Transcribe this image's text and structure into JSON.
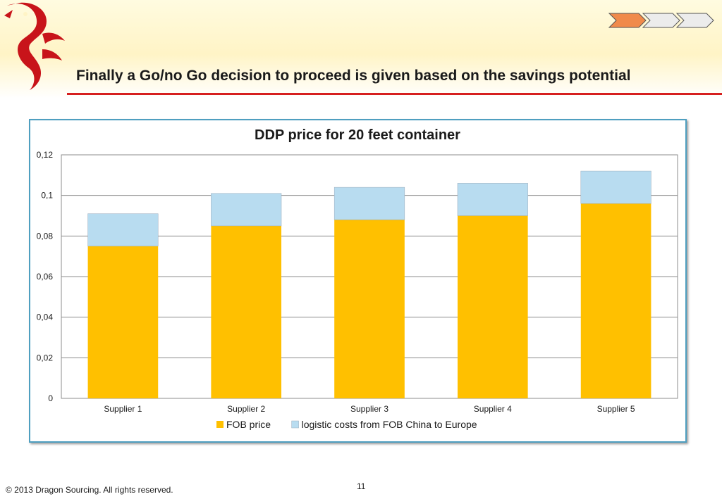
{
  "slide": {
    "title": "Finally a Go/no Go decision to proceed is given based on the savings potential",
    "footer": "© 2013 Dragon Sourcing. All rights reserved.",
    "page_number": "11",
    "accent_color": "#d61f1f",
    "band_color": "#fff4c6",
    "logo": "dragon-logo-icon",
    "progress_steps": 3,
    "active_step": 1
  },
  "chart_data": {
    "type": "bar",
    "stacked": true,
    "title": "DDP price for 20 feet container",
    "categories": [
      "Supplier 1",
      "Supplier 2",
      "Supplier 3",
      "Supplier 4",
      "Supplier 5"
    ],
    "series": [
      {
        "name": "FOB price",
        "color": "#ffc000",
        "values": [
          0.075,
          0.085,
          0.088,
          0.09,
          0.096
        ]
      },
      {
        "name": "logistic costs from FOB China to Europe",
        "color": "#b8dcf0",
        "values": [
          0.016,
          0.016,
          0.016,
          0.016,
          0.016
        ]
      }
    ],
    "y_ticks": [
      0,
      0.02,
      0.04,
      0.06,
      0.08,
      0.1,
      0.12
    ],
    "y_tick_labels": [
      "0",
      "0,02",
      "0,04",
      "0,06",
      "0,08",
      "0,1",
      "0,12"
    ],
    "ylim": [
      0,
      0.12
    ],
    "xlabel": "",
    "ylabel": "",
    "grid": true,
    "legend": "bottom"
  }
}
